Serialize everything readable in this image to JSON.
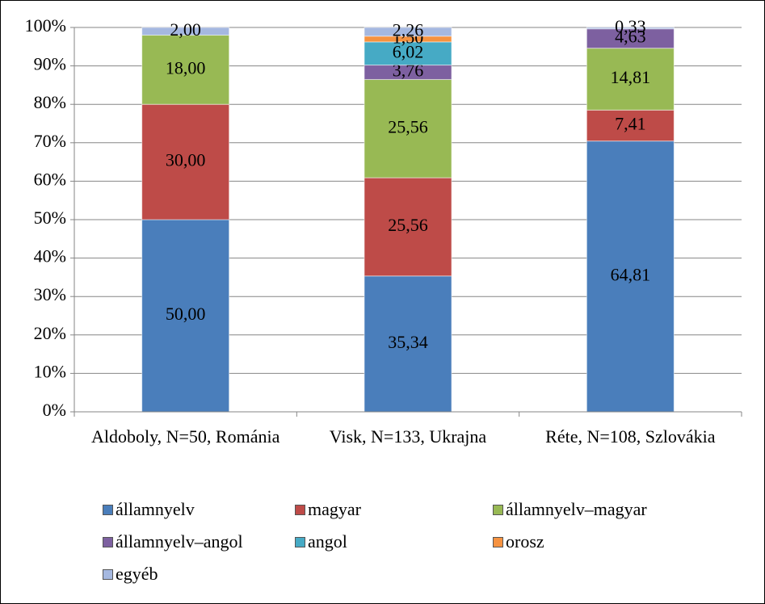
{
  "chart_data": {
    "type": "stacked_percent_bar",
    "categories": [
      "Aldoboly, N=50, Románia",
      "Visk, N=133, Ukrajna",
      "Réte, N=108, Szlovákia"
    ],
    "series": [
      {
        "name": "államnyelv",
        "color": "#4a7ebb",
        "values": [
          50.0,
          35.34,
          64.81
        ],
        "value_labels": [
          "50,00",
          "35,34",
          "64,81"
        ]
      },
      {
        "name": "magyar",
        "color": "#be4b48",
        "values": [
          30.0,
          25.56,
          7.41
        ],
        "value_labels": [
          "30,00",
          "25,56",
          "7,41"
        ]
      },
      {
        "name": "államnyelv–magyar",
        "color": "#98b954",
        "values": [
          18.0,
          25.56,
          14.81
        ],
        "value_labels": [
          "18,00",
          "25,56",
          "14,81"
        ]
      },
      {
        "name": "államnyelv–angol",
        "color": "#7d60a0",
        "values": [
          null,
          3.76,
          4.63
        ],
        "value_labels": [
          null,
          "3,76",
          "4,63"
        ]
      },
      {
        "name": "angol",
        "color": "#46aac5",
        "values": [
          null,
          6.02,
          null
        ],
        "value_labels": [
          null,
          "6,02",
          null
        ]
      },
      {
        "name": "orosz",
        "color": "#f69240",
        "values": [
          null,
          1.5,
          null
        ],
        "value_labels": [
          null,
          "1,50",
          null
        ]
      },
      {
        "name": "egyéb",
        "color": "#a5b8e0",
        "values": [
          2.0,
          2.26,
          0.33
        ],
        "value_labels": [
          "2,00",
          "2,26",
          "0,33"
        ]
      }
    ],
    "ylim": [
      0,
      100
    ],
    "yticks": [
      {
        "value": 0,
        "label": "0%"
      },
      {
        "value": 10,
        "label": "10%"
      },
      {
        "value": 20,
        "label": "20%"
      },
      {
        "value": 30,
        "label": "30%"
      },
      {
        "value": 40,
        "label": "40%"
      },
      {
        "value": 50,
        "label": "50%"
      },
      {
        "value": 60,
        "label": "60%"
      },
      {
        "value": 70,
        "label": "70%"
      },
      {
        "value": 80,
        "label": "80%"
      },
      {
        "value": 90,
        "label": "90%"
      },
      {
        "value": 100,
        "label": "100%"
      }
    ],
    "grid": true
  }
}
